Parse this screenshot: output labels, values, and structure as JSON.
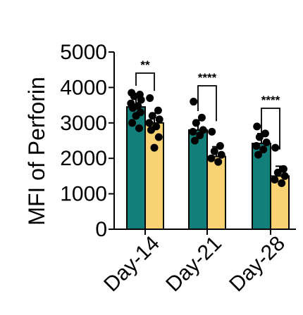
{
  "chart_data": {
    "type": "bar",
    "ylabel": "MFI of Perforin",
    "xlabel": "",
    "title": "",
    "ylim": [
      0,
      5000
    ],
    "yticks": [
      0,
      1000,
      2000,
      3000,
      4000,
      5000
    ],
    "ytick_labels": [
      "0",
      "1000",
      "2000",
      "3000",
      "4000",
      "5000"
    ],
    "categories": [
      "Day-14",
      "Day-21",
      "Day-28"
    ],
    "series": [
      {
        "color": "#137f7a",
        "values": [
          3450,
          2800,
          2420
        ],
        "points": [
          [
            3850,
            3800,
            3750,
            3650,
            3550,
            3480,
            3420,
            3300,
            3200,
            3000,
            2850
          ],
          [
            3600,
            3150,
            3000,
            2800,
            2750,
            2650,
            2500
          ],
          [
            2900,
            2700,
            2600,
            2450,
            2350,
            2250,
            2100
          ]
        ]
      },
      {
        "color": "#f9d273",
        "values": [
          3000,
          2050,
          1500
        ],
        "points": [
          [
            3700,
            3350,
            3200,
            3100,
            3000,
            2900,
            2800,
            2600,
            2300
          ],
          [
            2750,
            2350,
            2200,
            2100,
            2000,
            1900
          ],
          [
            2300,
            1700,
            1600,
            1500,
            1400,
            1300
          ]
        ]
      }
    ],
    "annotations": [
      {
        "label": "**",
        "category": "Day-14"
      },
      {
        "label": "****",
        "category": "Day-21"
      },
      {
        "label": "****",
        "category": "Day-28"
      }
    ],
    "grid": false,
    "legend": "none"
  }
}
